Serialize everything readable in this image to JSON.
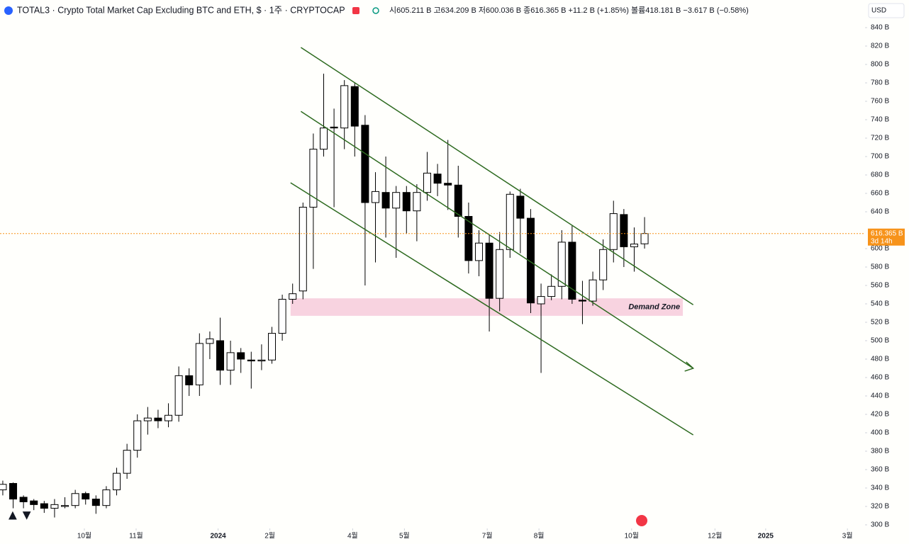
{
  "header": {
    "symbol": "TOTAL3 · Crypto Total Market Cap Excluding BTC and ETH, $ · 1주 · CRYPTOCAP",
    "ohlc": "시605.211 B 고634.209 B 저600.036 B 종616.365 B +11.2 B (+1.85%) 볼륨418.181 B −3.617 B (−0.58%)",
    "currency": "USD"
  },
  "chart_data": {
    "type": "candlestick",
    "up_color": "#ffffff",
    "down_color": "#000000",
    "outline_color": "#000000",
    "xlim": [
      -0.27,
      83.3
    ],
    "xticks": [
      {
        "value": 7.88,
        "label": "10월"
      },
      {
        "value": 12.88,
        "label": "11월"
      },
      {
        "value": 20.8,
        "label": "2024"
      },
      {
        "value": 25.8,
        "label": "2월"
      },
      {
        "value": 33.8,
        "label": "4월"
      },
      {
        "value": 38.8,
        "label": "5월"
      },
      {
        "value": 46.8,
        "label": "7월"
      },
      {
        "value": 51.8,
        "label": "8월"
      },
      {
        "value": 60.75,
        "label": "10월"
      },
      {
        "value": 68.8,
        "label": "12월"
      },
      {
        "value": 73.7,
        "label": "2025"
      },
      {
        "value": 81.6,
        "label": "3월"
      }
    ],
    "ylim": [
      279.2,
      870
    ],
    "yticks": [
      {
        "value": 300,
        "label": "300 B"
      },
      {
        "value": 320,
        "label": "320 B"
      },
      {
        "value": 340,
        "label": "340 B"
      },
      {
        "value": 360,
        "label": "360 B"
      },
      {
        "value": 380,
        "label": "380 B"
      },
      {
        "value": 400,
        "label": "400 B"
      },
      {
        "value": 420,
        "label": "420 B"
      },
      {
        "value": 440,
        "label": "440 B"
      },
      {
        "value": 460,
        "label": "460 B"
      },
      {
        "value": 480,
        "label": "480 B"
      },
      {
        "value": 500,
        "label": "500 B"
      },
      {
        "value": 520,
        "label": "520 B"
      },
      {
        "value": 540,
        "label": "540 B"
      },
      {
        "value": 560,
        "label": "560 B"
      },
      {
        "value": 580,
        "label": "580 B"
      },
      {
        "value": 600,
        "label": "600 B"
      },
      {
        "value": 640,
        "label": "640 B"
      },
      {
        "value": 660,
        "label": "660 B"
      },
      {
        "value": 680,
        "label": "680 B"
      },
      {
        "value": 700,
        "label": "700 B"
      },
      {
        "value": 720,
        "label": "720 B"
      },
      {
        "value": 740,
        "label": "740 B"
      },
      {
        "value": 760,
        "label": "760 B"
      },
      {
        "value": 780,
        "label": "780 B"
      },
      {
        "value": 800,
        "label": "800 B"
      },
      {
        "value": 820,
        "label": "820 B"
      },
      {
        "value": 840,
        "label": "840 B"
      }
    ],
    "series": [
      {
        "name": "TOTAL3",
        "open": [
          338,
          345,
          330,
          326,
          323,
          318,
          320,
          321,
          334,
          328,
          321,
          338,
          356,
          381,
          413,
          416,
          413,
          419,
          462,
          452,
          497,
          500,
          468,
          487,
          479,
          478,
          479,
          508,
          545,
          554,
          645,
          708,
          732,
          731,
          776,
          734,
          650,
          661,
          644,
          661,
          641,
          661,
          681,
          671,
          669,
          635,
          587,
          606,
          546,
          599,
          657,
          633,
          540,
          548,
          559,
          607,
          544,
          543,
          566,
          599,
          637,
          602,
          605.211
        ],
        "high": [
          348,
          346,
          332,
          328,
          326,
          328,
          330,
          338,
          336,
          332,
          342,
          362,
          388,
          420,
          428,
          425,
          432,
          472,
          470,
          508,
          510,
          525,
          500,
          492,
          488,
          496,
          515,
          550,
          562,
          650,
          725,
          790,
          752,
          783,
          780,
          745,
          683,
          700,
          668,
          668,
          670,
          705,
          692,
          718,
          690,
          650,
          620,
          615,
          618,
          662,
          665,
          643,
          562,
          572,
          620,
          625,
          565,
          575,
          610,
          652,
          643,
          623,
          634.209
        ],
        "low": [
          332,
          318,
          318,
          316,
          313,
          308,
          318,
          318,
          322,
          312,
          318,
          332,
          350,
          373,
          398,
          405,
          406,
          412,
          440,
          440,
          480,
          452,
          452,
          465,
          448,
          468,
          475,
          500,
          540,
          545,
          578,
          700,
          645,
          708,
          700,
          560,
          585,
          612,
          590,
          616,
          608,
          652,
          657,
          642,
          612,
          573,
          570,
          510,
          532,
          590,
          595,
          530,
          465,
          544,
          545,
          540,
          518,
          538,
          555,
          585,
          580,
          575,
          600.036
        ],
        "close": [
          344,
          328,
          325,
          322,
          318,
          322,
          321,
          334,
          328,
          321,
          338,
          356,
          381,
          413,
          416,
          413,
          419,
          462,
          452,
          497,
          502,
          468,
          487,
          480,
          478,
          479,
          508,
          545,
          551,
          645,
          708,
          731,
          731,
          777,
          733,
          650,
          662,
          644,
          661,
          641,
          661,
          682,
          671,
          669,
          635,
          587,
          606,
          546,
          599,
          659,
          633,
          541,
          548,
          559,
          607,
          545,
          543,
          566,
          599,
          638,
          602,
          605,
          616.365
        ]
      }
    ],
    "last_price": {
      "label": "616.365 B",
      "countdown": "3d 14h",
      "color": "#f7931a"
    },
    "zone": {
      "label": "Demand Zone",
      "x": [
        27.8,
        65.7
      ],
      "y": [
        527,
        546
      ],
      "color": "#f8d3e0"
    },
    "trendlines": {
      "color": "#2d6a1f",
      "lines": [
        {
          "x": [
            28.8,
            66.7
          ],
          "y": [
            818.5,
            539
          ]
        },
        {
          "x": [
            28.8,
            66.7
          ],
          "y": [
            749,
            470
          ]
        },
        {
          "x": [
            27.8,
            66.7
          ],
          "y": [
            671.5,
            397.7
          ]
        }
      ]
    }
  }
}
